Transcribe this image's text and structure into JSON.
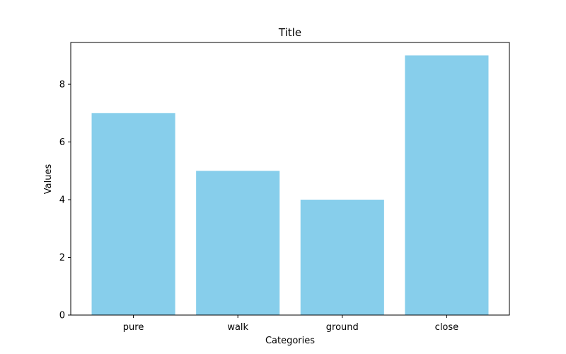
{
  "chart_data": {
    "type": "bar",
    "title": "Title",
    "xlabel": "Categories",
    "ylabel": "Values",
    "categories": [
      "pure",
      "walk",
      "ground",
      "close"
    ],
    "values": [
      7,
      5,
      4,
      9
    ],
    "ylim": [
      0,
      9.45
    ],
    "yticks": [
      0,
      2,
      4,
      6,
      8
    ],
    "grid": false,
    "bar_color": "#87CEEB",
    "axis_color": "#000000"
  }
}
